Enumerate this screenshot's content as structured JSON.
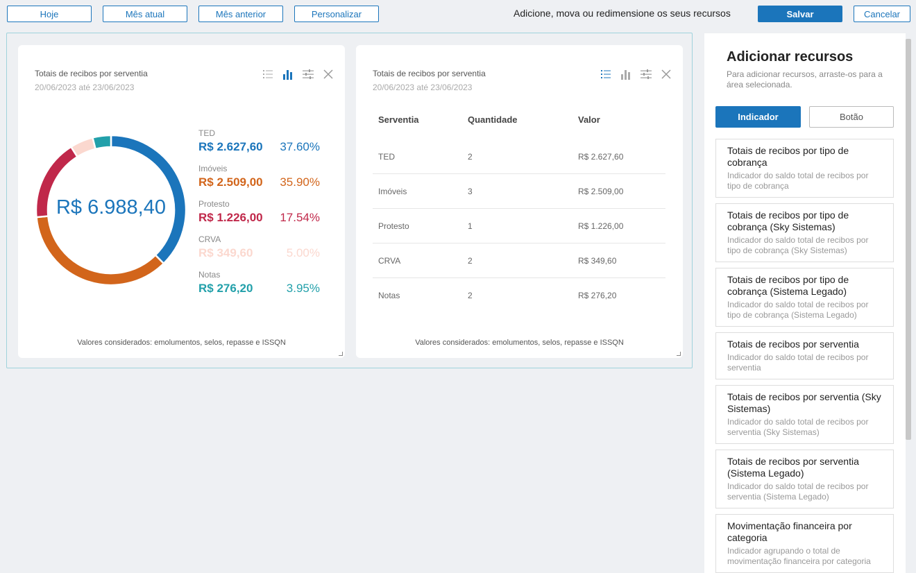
{
  "toolbar": {
    "today": "Hoje",
    "current_month": "Mês atual",
    "previous_month": "Mês anterior",
    "customize": "Personalizar",
    "message": "Adicione, mova ou redimensione os seus recursos",
    "save": "Salvar",
    "cancel": "Cancelar"
  },
  "chart_card": {
    "title": "Totais de recibos por serventia",
    "period": "20/06/2023 até 23/06/2023",
    "total": "R$ 6.988,40",
    "footer": "Valores considerados: emolumentos, selos, repasse e ISSQN",
    "legend": [
      {
        "name": "TED",
        "value": "R$ 2.627,60",
        "pct": "37.60%",
        "color": "#1b75bb"
      },
      {
        "name": "Imóveis",
        "value": "R$ 2.509,00",
        "pct": "35.90%",
        "color": "#d2651b"
      },
      {
        "name": "Protesto",
        "value": "R$ 1.226,00",
        "pct": "17.54%",
        "color": "#c0284a"
      },
      {
        "name": "CRVA",
        "value": "R$ 349,60",
        "pct": "5.00%",
        "color": "#fbd8cf"
      },
      {
        "name": "Notas",
        "value": "R$ 276,20",
        "pct": "3.95%",
        "color": "#22a0aa"
      }
    ]
  },
  "chart_data": {
    "type": "pie",
    "title": "Totais de recibos por serventia",
    "categories": [
      "TED",
      "Imóveis",
      "Protesto",
      "CRVA",
      "Notas"
    ],
    "values": [
      2627.6,
      2509.0,
      1226.0,
      349.6,
      276.2
    ],
    "percentages": [
      37.6,
      35.9,
      17.54,
      5.0,
      3.95
    ],
    "colors": [
      "#1b75bb",
      "#d2651b",
      "#c0284a",
      "#fbd8cf",
      "#22a0aa"
    ],
    "center_label": "R$ 6.988,40",
    "legend": "right"
  },
  "table_card": {
    "title": "Totais de recibos por serventia",
    "period": "20/06/2023 até 23/06/2023",
    "footer": "Valores considerados: emolumentos, selos, repasse e ISSQN",
    "columns": [
      "Serventia",
      "Quantidade",
      "Valor"
    ],
    "rows": [
      [
        "TED",
        "2",
        "R$ 2.627,60"
      ],
      [
        "Imóveis",
        "3",
        "R$ 2.509,00"
      ],
      [
        "Protesto",
        "1",
        "R$ 1.226,00"
      ],
      [
        "CRVA",
        "2",
        "R$ 349,60"
      ],
      [
        "Notas",
        "2",
        "R$ 276,20"
      ]
    ]
  },
  "panel": {
    "title": "Adicionar recursos",
    "subtitle": "Para adicionar recursos, arraste-os para a área selecionada.",
    "tabs": [
      "Indicador",
      "Botão"
    ],
    "resources": [
      {
        "title": "Totais de recibos por tipo de cobrança",
        "desc": "Indicador do saldo total de recibos por tipo de cobrança"
      },
      {
        "title": "Totais de recibos por tipo de cobrança (Sky Sistemas)",
        "desc": "Indicador do saldo total de recibos por tipo de cobrança (Sky Sistemas)"
      },
      {
        "title": "Totais de recibos por tipo de cobrança (Sistema Legado)",
        "desc": "Indicador do saldo total de recibos por tipo de cobrança (Sistema Legado)"
      },
      {
        "title": "Totais de recibos por serventia",
        "desc": "Indicador do saldo total de recibos por serventia"
      },
      {
        "title": "Totais de recibos por serventia (Sky Sistemas)",
        "desc": "Indicador do saldo total de recibos por serventia (Sky Sistemas)"
      },
      {
        "title": "Totais de recibos por serventia (Sistema Legado)",
        "desc": "Indicador do saldo total de recibos por serventia (Sistema Legado)"
      },
      {
        "title": "Movimentação financeira por categoria",
        "desc": "Indicador agrupando o total de movimentação financeira por categoria"
      }
    ]
  },
  "icons": {
    "list": "list-icon",
    "bar_chart": "bar-chart-icon",
    "settings": "sliders-icon",
    "close": "close-icon"
  }
}
